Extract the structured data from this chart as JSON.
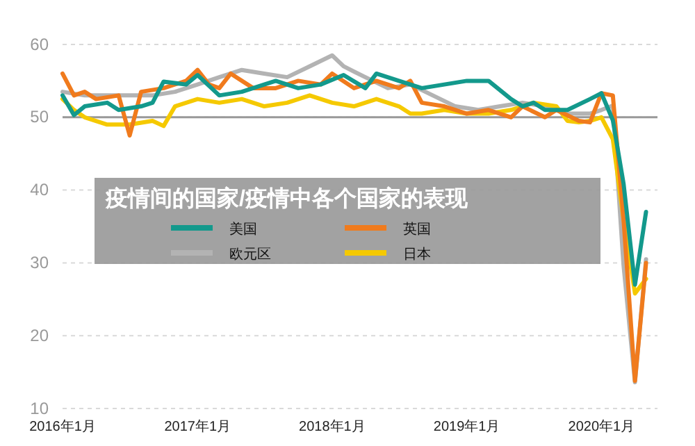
{
  "chart_data": {
    "type": "line",
    "title": "疫情间的国家/疫情中各个国家的表现",
    "xlim": [
      "2016-01",
      "2020-06"
    ],
    "xticks": [
      {
        "value": "2016-01",
        "label": "2016年1月"
      },
      {
        "value": "2017-01",
        "label": "2017年1月"
      },
      {
        "value": "2018-01",
        "label": "2018年1月"
      },
      {
        "value": "2019-01",
        "label": "2019年1月"
      },
      {
        "value": "2020-01",
        "label": "2020年1月"
      }
    ],
    "ylim": [
      10,
      60
    ],
    "yticks": [
      10,
      20,
      30,
      40,
      50,
      60
    ],
    "grid": "y",
    "legend": "center",
    "line_style": "solid",
    "marker": "none",
    "ref_lines": [
      {
        "axis": "y",
        "value": 50,
        "color": "#999999"
      }
    ],
    "series": [
      {
        "name": "欧元区",
        "color": "#b3b3b3",
        "x": [
          "2016-01",
          "2016-03",
          "2016-05",
          "2016-07",
          "2016-09",
          "2016-11",
          "2017-01",
          "2017-03",
          "2017-05",
          "2017-07",
          "2017-09",
          "2017-11",
          "2018-01",
          "2018-02",
          "2018-04",
          "2018-06",
          "2018-08",
          "2018-10",
          "2018-12",
          "2019-02",
          "2019-04",
          "2019-06",
          "2019-08",
          "2019-10",
          "2019-12",
          "2020-01",
          "2020-02",
          "2020-03",
          "2020-04",
          "2020-05"
        ],
        "values": [
          53.5,
          53,
          53,
          53,
          53,
          53.5,
          54.5,
          55.5,
          56.5,
          56,
          55.5,
          57,
          58.5,
          57,
          55.5,
          54,
          54.5,
          53,
          51.5,
          51,
          51.5,
          52,
          51.5,
          50.5,
          50.5,
          51,
          51.6,
          29.7,
          13.6,
          30.5
        ]
      },
      {
        "name": "日本",
        "color": "#f5c900",
        "x": [
          "2016-01",
          "2016-02",
          "2016-03",
          "2016-05",
          "2016-07",
          "2016-09",
          "2016-10",
          "2016-11",
          "2017-01",
          "2017-03",
          "2017-05",
          "2017-07",
          "2017-09",
          "2017-11",
          "2018-01",
          "2018-03",
          "2018-05",
          "2018-07",
          "2018-08",
          "2018-09",
          "2018-11",
          "2019-01",
          "2019-03",
          "2019-05",
          "2019-07",
          "2019-09",
          "2019-10",
          "2019-11",
          "2019-12",
          "2020-01",
          "2020-02",
          "2020-03",
          "2020-04",
          "2020-05"
        ],
        "values": [
          52.5,
          51,
          50,
          49,
          49,
          49.5,
          48.8,
          51.5,
          52.5,
          52,
          52.5,
          51.5,
          52,
          53,
          52,
          51.5,
          52.5,
          51.5,
          50.5,
          50.5,
          51,
          50.5,
          50.5,
          51,
          52,
          51.5,
          49.5,
          49.3,
          49.5,
          50,
          47,
          36,
          25.8,
          27.8
        ]
      },
      {
        "name": "英国",
        "color": "#f07b1d",
        "x": [
          "2016-01",
          "2016-02",
          "2016-03",
          "2016-04",
          "2016-06",
          "2016-07",
          "2016-08",
          "2016-10",
          "2016-12",
          "2017-01",
          "2017-02",
          "2017-03",
          "2017-04",
          "2017-06",
          "2017-08",
          "2017-10",
          "2017-12",
          "2018-01",
          "2018-03",
          "2018-05",
          "2018-07",
          "2018-08",
          "2018-09",
          "2018-11",
          "2019-01",
          "2019-03",
          "2019-05",
          "2019-06",
          "2019-08",
          "2019-09",
          "2019-11",
          "2019-12",
          "2020-01",
          "2020-02",
          "2020-03",
          "2020-04",
          "2020-05"
        ],
        "values": [
          56,
          53,
          53.5,
          52.5,
          53,
          47.5,
          53.5,
          54,
          55,
          56.5,
          54.5,
          54,
          56,
          54,
          54,
          55,
          54.5,
          56,
          54,
          55,
          54,
          55,
          52,
          51.5,
          50.5,
          51,
          50,
          51.5,
          50,
          51,
          49.5,
          49.3,
          53.3,
          53,
          36,
          13.8,
          30
        ]
      },
      {
        "name": "美国",
        "color": "#13998c",
        "x": [
          "2016-01",
          "2016-02",
          "2016-03",
          "2016-05",
          "2016-06",
          "2016-08",
          "2016-09",
          "2016-10",
          "2016-12",
          "2017-01",
          "2017-03",
          "2017-05",
          "2017-07",
          "2017-08",
          "2017-10",
          "2017-12",
          "2018-02",
          "2018-04",
          "2018-05",
          "2018-07",
          "2018-09",
          "2018-11",
          "2019-01",
          "2019-03",
          "2019-05",
          "2019-06",
          "2019-07",
          "2019-08",
          "2019-10",
          "2019-12",
          "2020-01",
          "2020-02",
          "2020-03",
          "2020-04",
          "2020-05"
        ],
        "values": [
          53,
          50.3,
          51.5,
          52,
          51,
          51.5,
          52,
          54.9,
          54.5,
          55.8,
          53,
          53.5,
          54.5,
          55,
          54,
          54.5,
          55.8,
          54,
          56,
          55,
          54,
          54.5,
          55,
          55,
          52.5,
          51.5,
          52,
          51,
          51,
          52.5,
          53.3,
          49.6,
          40.9,
          27,
          37
        ]
      }
    ]
  }
}
